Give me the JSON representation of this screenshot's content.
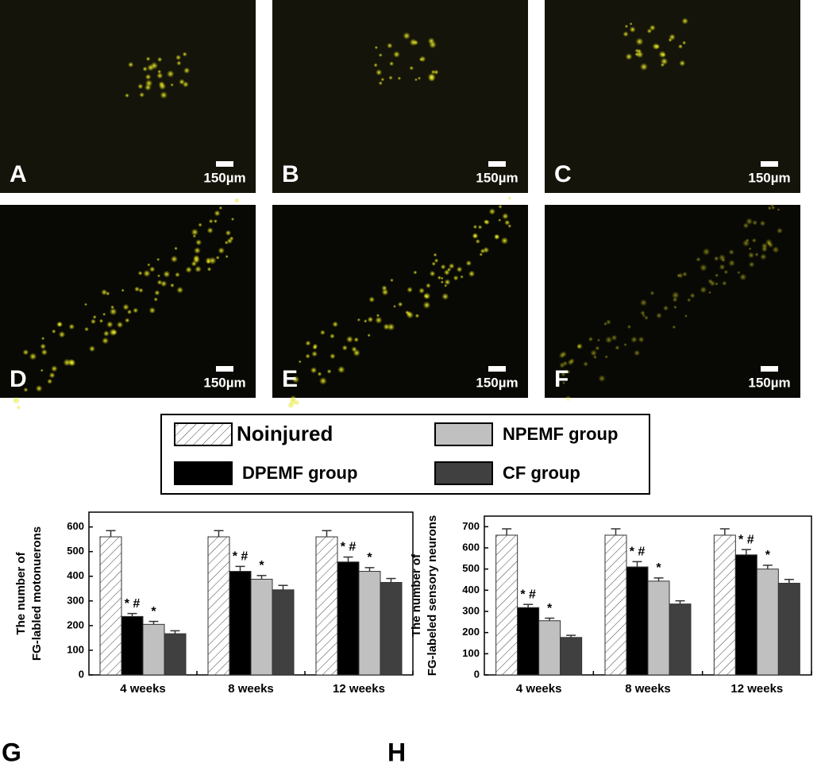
{
  "micrographs": [
    {
      "label": "A",
      "scale": "150µm"
    },
    {
      "label": "B",
      "scale": "150µm"
    },
    {
      "label": "C",
      "scale": "150µm"
    },
    {
      "label": "D",
      "scale": "150µm"
    },
    {
      "label": "E",
      "scale": "150µm"
    },
    {
      "label": "F",
      "scale": "150µm"
    }
  ],
  "chart_data": [
    {
      "type": "bar",
      "panel": "G",
      "ylabel": [
        "The number of",
        "FG-labled motonuerons"
      ],
      "categories": [
        "4 weeks",
        "8 weeks",
        "12 weeks"
      ],
      "ylim": [
        0,
        660
      ],
      "yticks": [
        0,
        100,
        200,
        300,
        400,
        500,
        600
      ],
      "series": [
        {
          "name": "Noinjured",
          "color": "hatch",
          "values": [
            560,
            560,
            560
          ],
          "errors": [
            25,
            25,
            25
          ]
        },
        {
          "name": "DPEMF group",
          "color": "#000000",
          "values": [
            237,
            420,
            458
          ],
          "errors": [
            12,
            20,
            20
          ],
          "annotations": [
            "* #",
            "* #",
            "* #"
          ]
        },
        {
          "name": "NPEMF group",
          "color": "#c0c0c0",
          "values": [
            205,
            388,
            420
          ],
          "errors": [
            12,
            15,
            15
          ],
          "annotations": [
            "*",
            "*",
            "*"
          ]
        },
        {
          "name": "CF group",
          "color": "#404040",
          "values": [
            167,
            345,
            375
          ],
          "errors": [
            12,
            18,
            16
          ]
        }
      ]
    },
    {
      "type": "bar",
      "panel": "H",
      "ylabel": [
        "The number of",
        "FG-labeled sensory neurons"
      ],
      "categories": [
        "4 weeks",
        "8 weeks",
        "12 weeks"
      ],
      "ylim": [
        0,
        750
      ],
      "yticks": [
        0,
        100,
        200,
        300,
        400,
        500,
        600,
        700
      ],
      "series": [
        {
          "name": "Noinjured",
          "color": "hatch",
          "values": [
            660,
            660,
            660
          ],
          "errors": [
            30,
            30,
            30
          ]
        },
        {
          "name": "DPEMF group",
          "color": "#000000",
          "values": [
            318,
            510,
            567
          ],
          "errors": [
            15,
            25,
            25
          ],
          "annotations": [
            "* #",
            "* #",
            "* #"
          ]
        },
        {
          "name": "NPEMF group",
          "color": "#c0c0c0",
          "values": [
            256,
            443,
            500
          ],
          "errors": [
            12,
            15,
            18
          ],
          "annotations": [
            "*",
            "*",
            "*"
          ]
        },
        {
          "name": "CF group",
          "color": "#404040",
          "values": [
            177,
            335,
            433
          ],
          "errors": [
            10,
            15,
            18
          ]
        }
      ]
    }
  ]
}
